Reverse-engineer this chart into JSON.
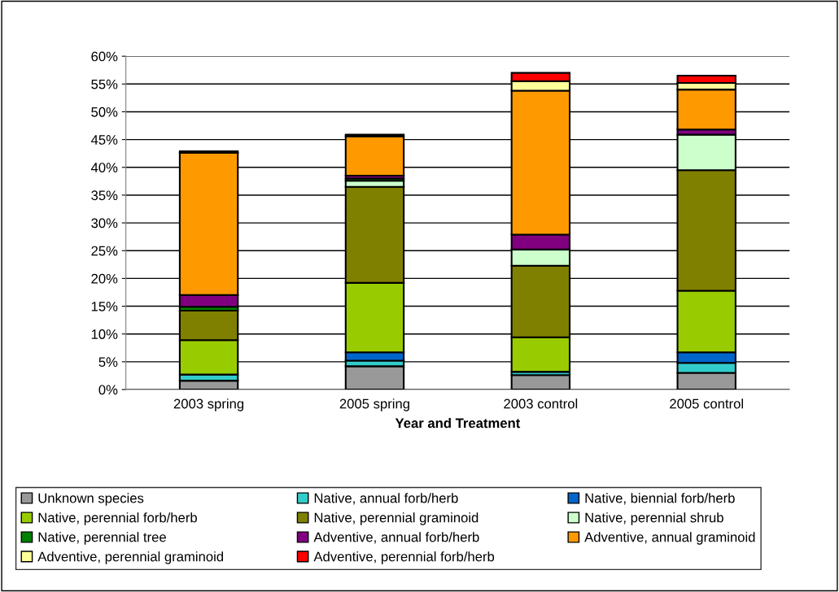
{
  "chart_data": {
    "type": "bar",
    "stacked": true,
    "xlabel": "Year and Treatment",
    "categories": [
      "2003 spring",
      "2005 spring",
      "2003 control",
      "2005 control"
    ],
    "series": [
      {
        "name": "Unknown species",
        "color": "#999999",
        "values": [
          1.6,
          4.2,
          2.6,
          3.0
        ]
      },
      {
        "name": "Native, annual forb/herb",
        "color": "#33cccc",
        "values": [
          1.1,
          1.0,
          0.6,
          1.8
        ]
      },
      {
        "name": "Native, biennial forb/herb",
        "color": "#0066cc",
        "values": [
          0,
          1.5,
          0,
          1.9
        ]
      },
      {
        "name": "Native, perennial forb/herb",
        "color": "#99cc00",
        "values": [
          6.2,
          12.5,
          6.2,
          11.1
        ]
      },
      {
        "name": "Native, perennial graminoid",
        "color": "#808000",
        "values": [
          5.3,
          17.3,
          12.9,
          21.7
        ]
      },
      {
        "name": "Native, perennial shrub",
        "color": "#ccffcc",
        "values": [
          0,
          1.1,
          2.9,
          6.4
        ]
      },
      {
        "name": "Native, perennial tree",
        "color": "#008000",
        "values": [
          0.7,
          0.4,
          0,
          0
        ]
      },
      {
        "name": "Adventive, annual forb/herb",
        "color": "#800080",
        "values": [
          2.1,
          0.5,
          2.7,
          0.9
        ]
      },
      {
        "name": "Adventive, annual graminoid",
        "color": "#ff9900",
        "values": [
          25.6,
          7.1,
          25.9,
          7.2
        ]
      },
      {
        "name": "Adventive, perennial graminoid",
        "color": "#ffff99",
        "values": [
          null,
          null,
          1.7,
          1.2
        ]
      },
      {
        "name": "Adventive, perennial forb/herb",
        "color": "#ff0000",
        "values": [
          0.3,
          0.3,
          1.5,
          1.3
        ]
      }
    ],
    "ylim": [
      0,
      60
    ],
    "yticks": [
      {
        "value": 0,
        "label": "0%"
      },
      {
        "value": 5,
        "label": "5%"
      },
      {
        "value": 10,
        "label": "10%"
      },
      {
        "value": 15,
        "label": "15%"
      },
      {
        "value": 20,
        "label": "20%"
      },
      {
        "value": 25,
        "label": "25%"
      },
      {
        "value": 30,
        "label": "30%"
      },
      {
        "value": 35,
        "label": "35%"
      },
      {
        "value": 40,
        "label": "40%"
      },
      {
        "value": 45,
        "label": "45%"
      },
      {
        "value": 50,
        "label": "50%"
      },
      {
        "value": 55,
        "label": "55%"
      },
      {
        "value": 60,
        "label": "60%"
      }
    ],
    "grid": "y",
    "legend": "bottom"
  }
}
